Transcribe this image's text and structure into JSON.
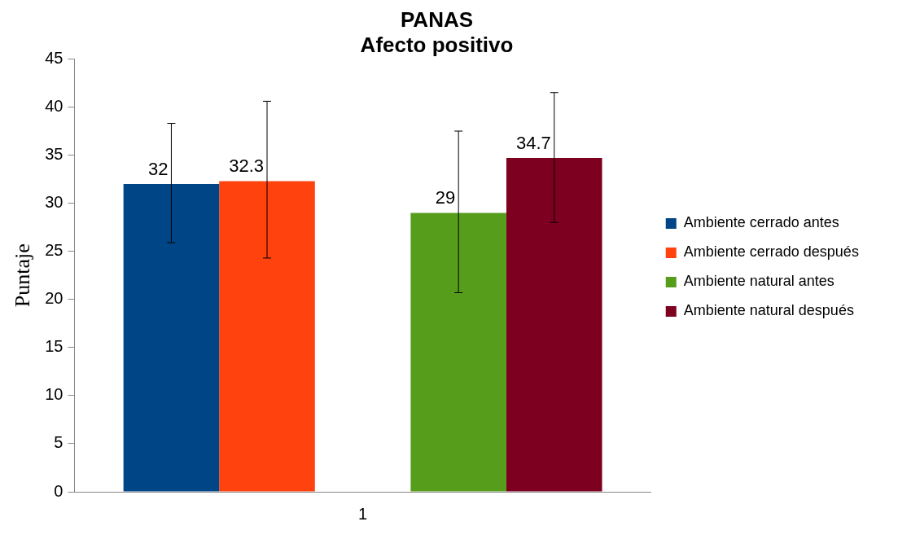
{
  "chart_data": {
    "type": "bar",
    "title": "PANAS",
    "subtitle": "Afecto positivo",
    "ylabel": "Puntaje",
    "categories": [
      "1"
    ],
    "series": [
      {
        "name": "Ambiente cerrado antes",
        "color": "#004586",
        "values": [
          32
        ],
        "errors": [
          [
            25.9,
            38.3
          ]
        ]
      },
      {
        "name": "Ambiente cerrado después",
        "color": "#ff420e",
        "values": [
          32.3
        ],
        "errors": [
          [
            24.3,
            40.6
          ]
        ]
      },
      {
        "values": [
          null
        ]
      },
      {
        "name": "Ambiente natural antes",
        "color": "#579d1c",
        "values": [
          29
        ],
        "errors": [
          [
            20.7,
            37.5
          ]
        ]
      },
      {
        "name": "Ambiente natural después",
        "color": "#7e0021",
        "values": [
          34.7
        ],
        "errors": [
          [
            28,
            41.5
          ]
        ]
      }
    ],
    "ylim": [
      0,
      45
    ],
    "yticks": [
      0,
      5,
      10,
      15,
      20,
      25,
      30,
      35,
      40,
      45
    ],
    "grid": false,
    "legend": "right",
    "data_labels": true
  }
}
